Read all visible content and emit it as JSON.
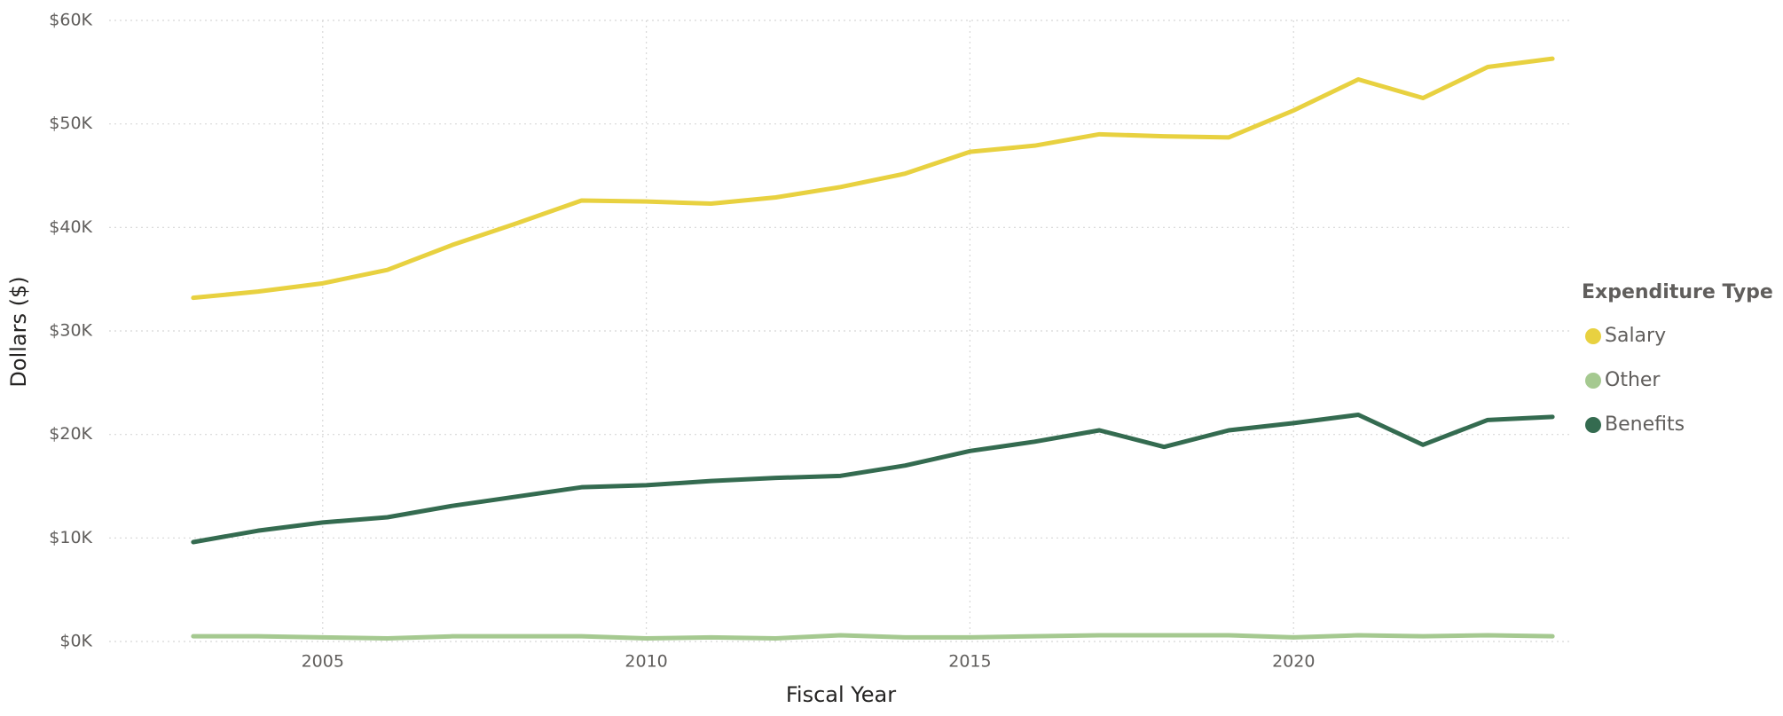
{
  "chart_data": {
    "type": "line",
    "x_label": "Fiscal Year",
    "y_label": "Dollars ($)",
    "x": [
      2003,
      2004,
      2005,
      2006,
      2007,
      2008,
      2009,
      2010,
      2011,
      2012,
      2013,
      2014,
      2015,
      2016,
      2017,
      2018,
      2019,
      2020,
      2021,
      2022,
      2023,
      2024
    ],
    "series": [
      {
        "name": "Salary",
        "color": "#e8d140",
        "values": [
          33200,
          33800,
          34600,
          35900,
          38300,
          40400,
          42600,
          42500,
          42300,
          42900,
          43900,
          45200,
          47300,
          47900,
          49000,
          48800,
          48700,
          51300,
          54300,
          52500,
          55500,
          56300
        ]
      },
      {
        "name": "Other",
        "color": "#a5c990",
        "values": [
          500,
          500,
          400,
          300,
          500,
          500,
          500,
          300,
          400,
          300,
          600,
          400,
          400,
          500,
          600,
          600,
          600,
          400,
          600,
          500,
          600,
          500
        ]
      },
      {
        "name": "Benefits",
        "color": "#346b50",
        "values": [
          9600,
          10700,
          11500,
          12000,
          13100,
          14000,
          14900,
          15100,
          15500,
          15800,
          16000,
          17000,
          18400,
          19300,
          20400,
          18800,
          20400,
          21100,
          21900,
          19000,
          21400,
          21700
        ]
      }
    ],
    "xlim": [
      2001.7,
      2024.3
    ],
    "xticks": [
      2005,
      2010,
      2015,
      2020
    ],
    "ylim": [
      0,
      60000
    ],
    "yticks": [
      {
        "value": 0,
        "label": "$0K"
      },
      {
        "value": 10000,
        "label": "$10K"
      },
      {
        "value": 20000,
        "label": "$20K"
      },
      {
        "value": 30000,
        "label": "$30K"
      },
      {
        "value": 40000,
        "label": "$40K"
      },
      {
        "value": 50000,
        "label": "$50K"
      },
      {
        "value": 60000,
        "label": "$60K"
      }
    ],
    "grid": true,
    "legend_title": "Expenditure Type",
    "legend_position": "right"
  }
}
